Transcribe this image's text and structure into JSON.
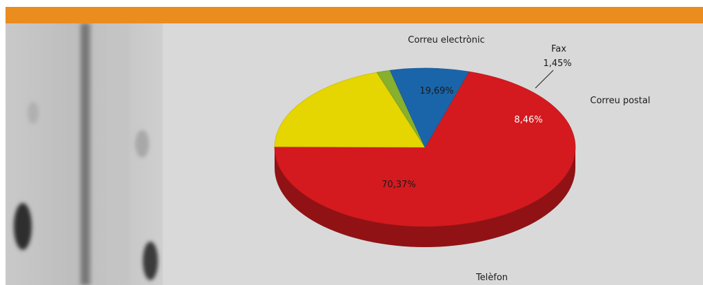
{
  "theme": {
    "header_color": "#EA8C1E",
    "panel_bg": "#D9D9D9",
    "photo_bg": "#BEBEBE"
  },
  "chart_data": {
    "type": "pie",
    "style": "3d",
    "slices": [
      {
        "label": "Telèfon",
        "value": 70.37,
        "value_label": "70,37%",
        "color": "#D41A1F"
      },
      {
        "label": "Correu electrònic",
        "value": 19.69,
        "value_label": "19,69%",
        "color": "#E5D500"
      },
      {
        "label": "Fax",
        "value": 1.45,
        "value_label": "1,45%",
        "color": "#86B02D"
      },
      {
        "label": "Correu postal",
        "value": 8.46,
        "value_label": "8,46%",
        "color": "#1A65AA"
      }
    ]
  }
}
